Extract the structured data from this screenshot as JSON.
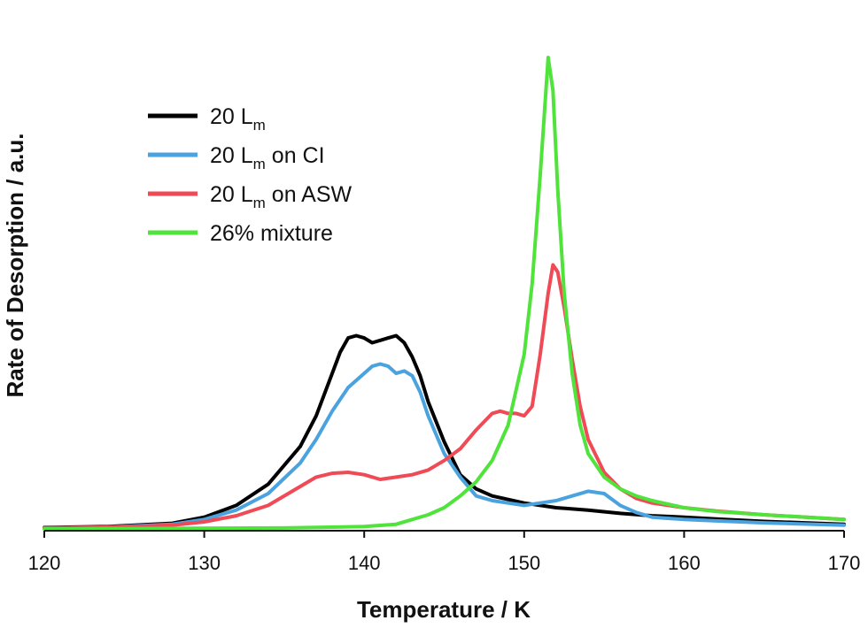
{
  "chart_data": {
    "type": "line",
    "xlabel": "Temperature / K",
    "ylabel": "Rate of Desorption / a.u.",
    "xlim": [
      120,
      170
    ],
    "ylim": [
      0,
      1
    ],
    "xticks": [
      120,
      130,
      140,
      150,
      160,
      170
    ],
    "grid": false,
    "legend_position": "top-left",
    "series": [
      {
        "name": "20 L",
        "name_subscript": "m",
        "name_suffix": "",
        "color": "#000000",
        "points": [
          [
            120,
            0.003
          ],
          [
            124,
            0.005
          ],
          [
            128,
            0.012
          ],
          [
            130,
            0.025
          ],
          [
            132,
            0.05
          ],
          [
            134,
            0.095
          ],
          [
            136,
            0.175
          ],
          [
            137,
            0.24
          ],
          [
            138,
            0.33
          ],
          [
            138.5,
            0.375
          ],
          [
            139,
            0.405
          ],
          [
            139.5,
            0.41
          ],
          [
            140,
            0.405
          ],
          [
            140.5,
            0.395
          ],
          [
            141,
            0.4
          ],
          [
            141.5,
            0.405
          ],
          [
            142,
            0.41
          ],
          [
            142.5,
            0.395
          ],
          [
            143,
            0.365
          ],
          [
            143.5,
            0.325
          ],
          [
            144,
            0.27
          ],
          [
            145,
            0.185
          ],
          [
            146,
            0.115
          ],
          [
            147,
            0.085
          ],
          [
            148,
            0.07
          ],
          [
            150,
            0.055
          ],
          [
            152,
            0.045
          ],
          [
            154,
            0.04
          ],
          [
            156,
            0.033
          ],
          [
            158,
            0.028
          ],
          [
            160,
            0.025
          ],
          [
            162,
            0.021
          ],
          [
            165,
            0.016
          ],
          [
            170,
            0.01
          ]
        ]
      },
      {
        "name": "20 L",
        "name_subscript": "m",
        "name_suffix": " on CI",
        "color": "#4aa3df",
        "points": [
          [
            120,
            0.002
          ],
          [
            124,
            0.004
          ],
          [
            128,
            0.01
          ],
          [
            130,
            0.02
          ],
          [
            132,
            0.04
          ],
          [
            134,
            0.075
          ],
          [
            136,
            0.14
          ],
          [
            137,
            0.19
          ],
          [
            138,
            0.25
          ],
          [
            139,
            0.3
          ],
          [
            140,
            0.33
          ],
          [
            140.5,
            0.345
          ],
          [
            141,
            0.35
          ],
          [
            141.5,
            0.345
          ],
          [
            142,
            0.33
          ],
          [
            142.5,
            0.335
          ],
          [
            143,
            0.325
          ],
          [
            143.5,
            0.29
          ],
          [
            144,
            0.24
          ],
          [
            145,
            0.16
          ],
          [
            146,
            0.11
          ],
          [
            147,
            0.07
          ],
          [
            148,
            0.06
          ],
          [
            149,
            0.055
          ],
          [
            150,
            0.05
          ],
          [
            151,
            0.055
          ],
          [
            152,
            0.06
          ],
          [
            153,
            0.07
          ],
          [
            154,
            0.08
          ],
          [
            155,
            0.075
          ],
          [
            156,
            0.05
          ],
          [
            157,
            0.035
          ],
          [
            158,
            0.025
          ],
          [
            160,
            0.02
          ],
          [
            162,
            0.017
          ],
          [
            165,
            0.013
          ],
          [
            170,
            0.008
          ]
        ]
      },
      {
        "name": "20 L",
        "name_subscript": "m",
        "name_suffix": " on ASW",
        "color": "#ef4a55",
        "points": [
          [
            120,
            0.002
          ],
          [
            124,
            0.004
          ],
          [
            128,
            0.008
          ],
          [
            130,
            0.015
          ],
          [
            132,
            0.028
          ],
          [
            134,
            0.05
          ],
          [
            136,
            0.09
          ],
          [
            137,
            0.11
          ],
          [
            138,
            0.118
          ],
          [
            139,
            0.12
          ],
          [
            140,
            0.115
          ],
          [
            141,
            0.105
          ],
          [
            142,
            0.11
          ],
          [
            143,
            0.115
          ],
          [
            144,
            0.125
          ],
          [
            145,
            0.145
          ],
          [
            146,
            0.17
          ],
          [
            147,
            0.21
          ],
          [
            148,
            0.245
          ],
          [
            148.5,
            0.25
          ],
          [
            149,
            0.245
          ],
          [
            149.5,
            0.245
          ],
          [
            150,
            0.24
          ],
          [
            150.5,
            0.26
          ],
          [
            151,
            0.37
          ],
          [
            151.5,
            0.5
          ],
          [
            151.8,
            0.56
          ],
          [
            152.1,
            0.545
          ],
          [
            152.5,
            0.47
          ],
          [
            153,
            0.36
          ],
          [
            153.5,
            0.26
          ],
          [
            154,
            0.19
          ],
          [
            155,
            0.12
          ],
          [
            156,
            0.085
          ],
          [
            157,
            0.065
          ],
          [
            158,
            0.055
          ],
          [
            160,
            0.045
          ],
          [
            162,
            0.038
          ],
          [
            165,
            0.03
          ],
          [
            170,
            0.02
          ]
        ]
      },
      {
        "name": "26% mixture",
        "name_subscript": "",
        "name_suffix": "",
        "color": "#4fe33b",
        "points": [
          [
            120,
            0.0
          ],
          [
            135,
            0.002
          ],
          [
            140,
            0.005
          ],
          [
            142,
            0.01
          ],
          [
            143,
            0.02
          ],
          [
            144,
            0.03
          ],
          [
            145,
            0.045
          ],
          [
            146,
            0.07
          ],
          [
            147,
            0.1
          ],
          [
            148,
            0.145
          ],
          [
            149,
            0.22
          ],
          [
            150,
            0.37
          ],
          [
            150.5,
            0.52
          ],
          [
            151,
            0.75
          ],
          [
            151.3,
            0.9
          ],
          [
            151.5,
            1.0
          ],
          [
            151.8,
            0.93
          ],
          [
            152.1,
            0.72
          ],
          [
            152.5,
            0.5
          ],
          [
            153,
            0.33
          ],
          [
            153.5,
            0.22
          ],
          [
            154,
            0.16
          ],
          [
            155,
            0.11
          ],
          [
            156,
            0.085
          ],
          [
            157,
            0.07
          ],
          [
            158,
            0.06
          ],
          [
            160,
            0.045
          ],
          [
            162,
            0.037
          ],
          [
            165,
            0.03
          ],
          [
            170,
            0.02
          ]
        ]
      }
    ]
  }
}
